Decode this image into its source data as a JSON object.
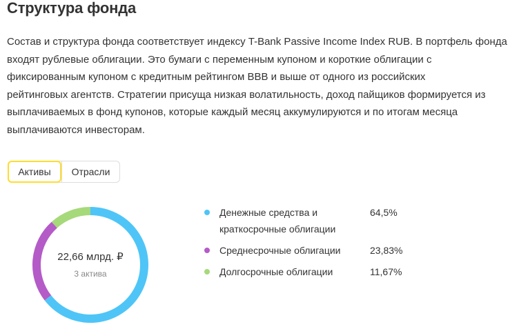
{
  "heading": "Структура фонда",
  "description_lines": [
    "Состав и структура фонда соответствует индексу T-Bank Passive Income Index RUB. В портфель фонда",
    "входят рублевые облигации. Это бумаги с переменным купоном и короткие облигации с",
    "фиксированным купоном с кредитным рейтингом BBB и выше от одного из российских",
    "рейтинговых агентств. Стратегии присуща низкая волатильность, доход пайщиков формируется из",
    "выплачиваемых в фонд купонов, которые каждый месяц аккумулируются и по итогам месяца",
    "выплачиваются инвесторам."
  ],
  "tabs": [
    {
      "label": "Активы",
      "selected": true
    },
    {
      "label": "Отрасли",
      "selected": false
    }
  ],
  "donut": {
    "total": "22,66 млрд. ₽",
    "subtitle": "3 актива"
  },
  "legend": [
    {
      "label_lines": [
        "Денежные средства и",
        "краткосрочные облигации"
      ],
      "value": "64,5%",
      "color": "#4fc5f7"
    },
    {
      "label_lines": [
        "Среднесрочные облигации"
      ],
      "value": "23,83%",
      "color": "#b45bc8"
    },
    {
      "label_lines": [
        "Долгосрочные облигации"
      ],
      "value": "11,67%",
      "color": "#a6d97a"
    }
  ],
  "chart_data": {
    "type": "pie",
    "categories": [
      "Денежные средства и краткосрочные облигации",
      "Среднесрочные облигации",
      "Долгосрочные облигации"
    ],
    "values": [
      64.5,
      23.83,
      11.67
    ],
    "colors": [
      "#4fc5f7",
      "#b45bc8",
      "#a6d97a"
    ],
    "start_angle_deg": 0,
    "direction": "clockwise",
    "donut": true
  }
}
